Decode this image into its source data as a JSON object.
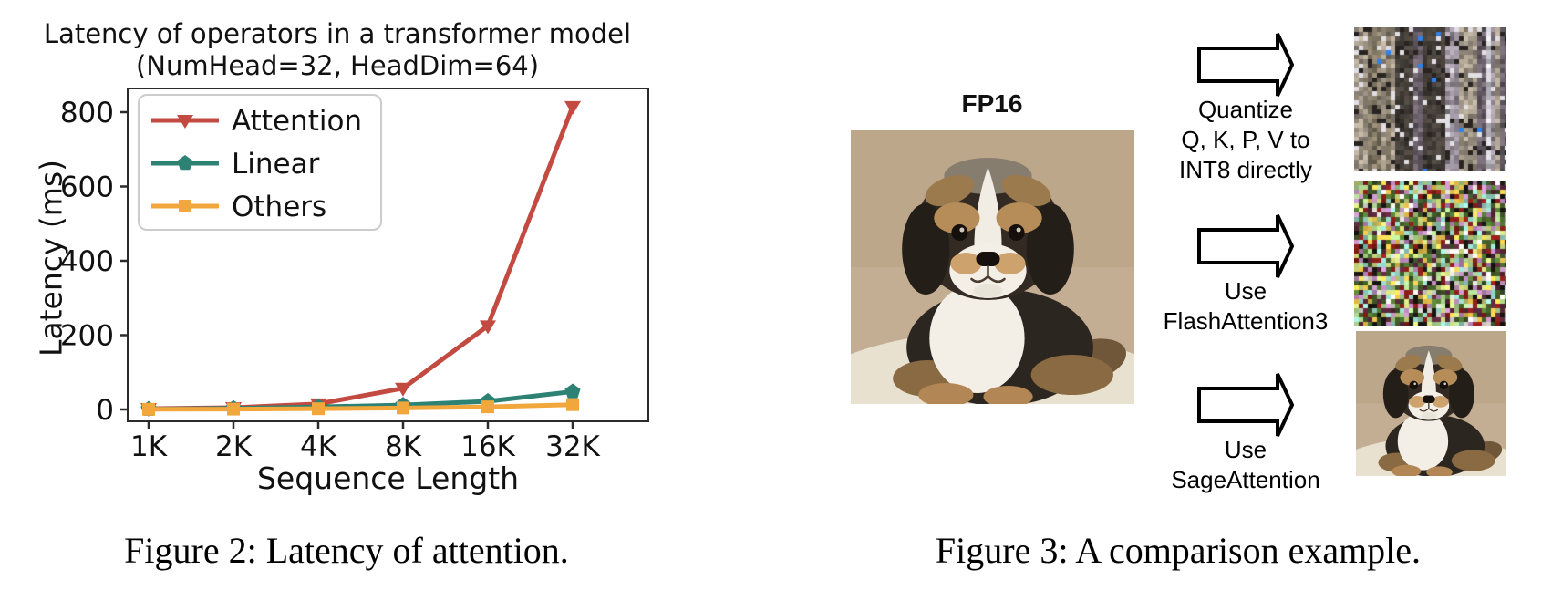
{
  "page": {
    "background": "#ffffff"
  },
  "figure2": {
    "caption": "Figure 2: Latency of attention.",
    "chart_data": {
      "type": "line",
      "title": "Latency of operators in a transformer model",
      "subtitle": "(NumHead=32, HeadDim=64)",
      "xlabel": "Sequence Length",
      "ylabel": "Latency (ms)",
      "x_ticklabels": [
        "1K",
        "2K",
        "4K",
        "8K",
        "16K",
        "32K"
      ],
      "y_ticks": [
        0,
        200,
        400,
        600,
        800
      ],
      "ylim": [
        0,
        865
      ],
      "grid": false,
      "legend_position": "upper-left",
      "series": [
        {
          "name": "Attention",
          "color": "#c24a41",
          "marker": "triangle-down",
          "values": [
            2,
            5,
            15,
            57,
            225,
            815
          ]
        },
        {
          "name": "Linear",
          "color": "#2e8274",
          "marker": "pentagon",
          "values": [
            1,
            3,
            7,
            12,
            22,
            48
          ]
        },
        {
          "name": "Others",
          "color": "#f1a73c",
          "marker": "square",
          "values": [
            0.5,
            1,
            2,
            4,
            7,
            13
          ]
        }
      ]
    }
  },
  "figure3": {
    "caption": "Figure 3: A comparison example.",
    "source_label": "FP16",
    "source_image": "fp16-dog-photo",
    "branches": [
      {
        "label_lines": [
          "Quantize",
          "Q, K, P, V to",
          "INT8 directly"
        ],
        "output_image": "noisy-artifact-image"
      },
      {
        "label_lines": [
          "Use",
          "FlashAttention3"
        ],
        "output_image": "noisy-artifact-image"
      },
      {
        "label_lines": [
          "Use",
          "SageAttention"
        ],
        "output_image": "clean-dog-image"
      }
    ]
  }
}
